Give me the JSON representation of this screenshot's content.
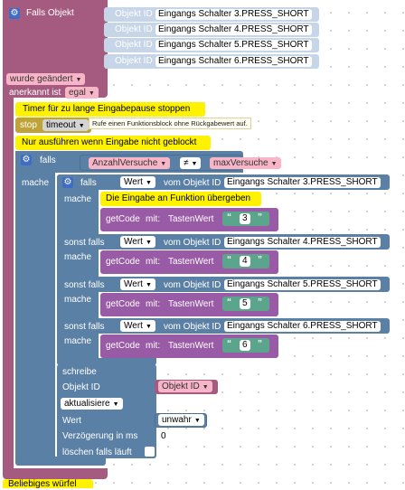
{
  "main_block": {
    "label": "Falls Objekt",
    "rows": [
      {
        "prefix": "Objekt ID",
        "value": "Eingangs Schalter 3.PRESS_SHORT"
      },
      {
        "prefix": "Objekt ID",
        "value": "Eingangs Schalter 4.PRESS_SHORT"
      },
      {
        "prefix": "Objekt ID",
        "value": "Eingangs Schalter 5.PRESS_SHORT"
      },
      {
        "prefix": "Objekt ID",
        "value": "Eingangs Schalter 6.PRESS_SHORT"
      }
    ],
    "wurde_geaendert": "wurde geändert",
    "anerkannt_ist": "anerkannt ist",
    "anerkannt_value": "egal"
  },
  "timer_block": {
    "label": "Timer für zu lange Eingabepause stoppen",
    "stop": "stop",
    "timeout": "timeout",
    "comment": "Rufe einen Funktionsblock ohne Rückgabewert auf."
  },
  "nur_block": {
    "label": "Nur ausführen wenn Eingabe nicht geblockt"
  },
  "falls_outer": {
    "falls": "falls",
    "mache": "mache",
    "left_var": "AnzahlVersuche",
    "op": "≠",
    "right_var": "maxVersuche"
  },
  "falls_inner": {
    "falls": "falls",
    "mache": "mache",
    "sonst_falls": "sonst falls",
    "wert": "Wert",
    "vom_objekt": "vom Objekt ID",
    "objects": [
      "Eingangs Schalter 3.PRESS_SHORT",
      "Eingangs Schalter 4.PRESS_SHORT",
      "Eingangs Schalter 5.PRESS_SHORT",
      "Eingangs Schalter 6.PRESS_SHORT"
    ],
    "comment": "Die Eingabe an Funktion übergeben",
    "getcode": "getCode",
    "mit": "mit:",
    "tastenwert": "TastenWert",
    "values": [
      "3",
      "4",
      "5",
      "6"
    ]
  },
  "schreibe_block": {
    "label": "schreibe",
    "objekt_id": "Objekt ID",
    "objekt_id_value": "Objekt ID",
    "aktualisiere": "aktualisiere",
    "wert": "Wert",
    "wert_value": "unwahr",
    "verzoegerung": "Verzögerung in ms",
    "verzoegerung_value": "0",
    "loeschen": "löschen falls läuft"
  },
  "bottom_block": {
    "label": "Beliebiges würfel"
  }
}
